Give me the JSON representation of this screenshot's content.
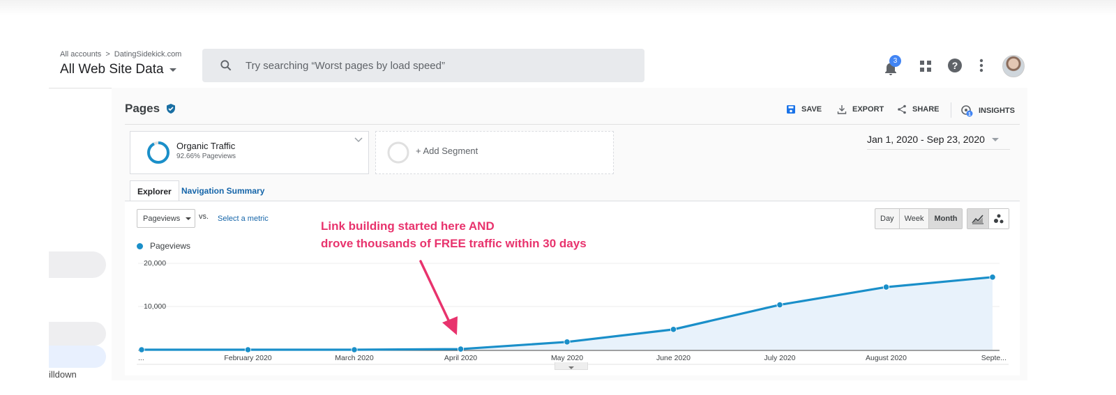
{
  "header": {
    "breadcrumb": [
      "All accounts",
      "DatingSidekick.com"
    ],
    "view_name": "All Web Site Data",
    "search_placeholder": "Try searching “Worst pages by load speed”",
    "notifications_count": "3"
  },
  "report": {
    "title": "Pages",
    "actions": {
      "save": "SAVE",
      "export": "EXPORT",
      "share": "SHARE",
      "insights": "INSIGHTS",
      "insights_count": "1"
    },
    "segment": {
      "name": "Organic Traffic",
      "detail": "92.66% Pageviews",
      "add_label": "+ Add Segment"
    },
    "date_range": "Jan 1, 2020 - Sep 23, 2020",
    "tabs": [
      "Explorer",
      "Navigation Summary"
    ],
    "metric": "Pageviews",
    "vs": "vs.",
    "select_metric": "Select a metric",
    "granularity": [
      "Day",
      "Week",
      "Month"
    ],
    "granularity_selected": "Month"
  },
  "sidebar": {
    "partial_text": "illdown"
  },
  "annotation": [
    "Link building started here AND",
    "drove thousands of FREE traffic within 30 days"
  ],
  "colors": {
    "line": "#1a8fc9",
    "area": "#e8f2fb",
    "annotation": "#e8336d",
    "accent": "#1565a9"
  },
  "chart_data": {
    "type": "area",
    "series": [
      {
        "name": "Pageviews",
        "values": [
          0,
          0,
          0,
          150,
          1800,
          4700,
          10400,
          14500,
          16800
        ]
      }
    ],
    "categories": [
      "...",
      "February 2020",
      "March 2020",
      "April 2020",
      "May 2020",
      "June 2020",
      "July 2020",
      "August 2020",
      "Septe..."
    ],
    "y_ticks": [
      "20,000",
      "10,000"
    ],
    "ylim": [
      0,
      20000
    ],
    "grid": true,
    "legend": "top-left"
  }
}
